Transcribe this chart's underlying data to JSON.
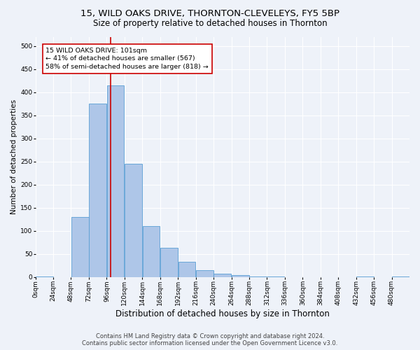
{
  "title": "15, WILD OAKS DRIVE, THORNTON-CLEVELEYS, FY5 5BP",
  "subtitle": "Size of property relative to detached houses in Thornton",
  "xlabel": "Distribution of detached houses by size in Thornton",
  "ylabel": "Number of detached properties",
  "footnote1": "Contains HM Land Registry data © Crown copyright and database right 2024.",
  "footnote2": "Contains public sector information licensed under the Open Government Licence v3.0.",
  "bin_edges": [
    0,
    24,
    48,
    72,
    96,
    120,
    144,
    168,
    192,
    216,
    240,
    264,
    288,
    312,
    336,
    360,
    384,
    408,
    432,
    456,
    480,
    504
  ],
  "bin_counts": [
    2,
    0,
    130,
    375,
    415,
    245,
    110,
    63,
    33,
    15,
    8,
    5,
    2,
    1,
    0,
    0,
    0,
    0,
    1,
    0,
    2
  ],
  "bar_color": "#aec6e8",
  "bar_edge_color": "#5a9fd4",
  "property_size": 101,
  "property_line_color": "#cc0000",
  "annotation_line1": "15 WILD OAKS DRIVE: 101sqm",
  "annotation_line2": "← 41% of detached houses are smaller (567)",
  "annotation_line3": "58% of semi-detached houses are larger (818) →",
  "annotation_box_color": "#ffffff",
  "annotation_border_color": "#cc0000",
  "ylim": [
    0,
    520
  ],
  "yticks": [
    0,
    50,
    100,
    150,
    200,
    250,
    300,
    350,
    400,
    450,
    500
  ],
  "background_color": "#eef2f9",
  "tick_labels": [
    "0sqm",
    "24sqm",
    "48sqm",
    "72sqm",
    "96sqm",
    "120sqm",
    "144sqm",
    "168sqm",
    "192sqm",
    "216sqm",
    "240sqm",
    "264sqm",
    "288sqm",
    "312sqm",
    "336sqm",
    "360sqm",
    "384sqm",
    "408sqm",
    "432sqm",
    "456sqm",
    "480sqm"
  ],
  "title_fontsize": 9.5,
  "subtitle_fontsize": 8.5,
  "xlabel_fontsize": 8.5,
  "ylabel_fontsize": 7.5,
  "tick_fontsize": 6.5,
  "annotation_fontsize": 6.8,
  "footnote_fontsize": 6.0
}
